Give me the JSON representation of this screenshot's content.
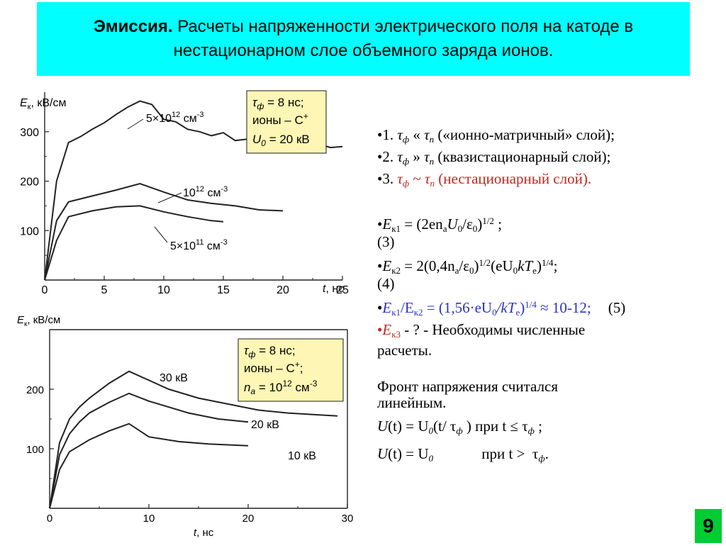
{
  "header": {
    "bold": "Эмиссия.",
    "rest": " Расчеты напряженности электрического поля на катоде в нестационарном слое объемного заряда ионов."
  },
  "chart_data": [
    {
      "type": "line",
      "ylabel_main": "E",
      "ylabel_sub": "к",
      "ylabel_unit": ", кВ/см",
      "xlabel": "t, нс",
      "xlim": [
        0,
        25
      ],
      "ylim": [
        0,
        380
      ],
      "xticks": [
        "0",
        "5",
        "10",
        "15",
        "20",
        "25"
      ],
      "yticks": [
        "100",
        "200",
        "300"
      ],
      "series": [
        {
          "name": "5×10¹² см⁻³",
          "x": [
            0,
            1,
            2,
            3,
            4,
            5,
            6,
            7,
            8,
            9,
            10,
            11,
            12,
            13,
            14,
            15,
            16,
            17,
            18,
            19,
            20,
            21,
            22,
            23,
            24,
            25
          ],
          "y": [
            0,
            200,
            278,
            290,
            305,
            318,
            335,
            350,
            362,
            355,
            325,
            320,
            305,
            300,
            292,
            298,
            282,
            285,
            278,
            280,
            275,
            278,
            272,
            275,
            268,
            270
          ]
        },
        {
          "name": "10¹² см⁻³",
          "x": [
            0,
            1,
            2,
            4,
            6,
            8,
            10,
            12,
            14,
            16,
            18,
            20
          ],
          "y": [
            0,
            120,
            158,
            170,
            182,
            195,
            178,
            162,
            155,
            150,
            142,
            140
          ]
        },
        {
          "name": "5×10¹¹ см⁻³",
          "x": [
            0,
            1,
            2,
            4,
            6,
            8,
            10,
            12,
            14,
            15
          ],
          "y": [
            0,
            80,
            128,
            140,
            148,
            150,
            138,
            128,
            120,
            118
          ]
        }
      ],
      "series_labels": [
        {
          "base": "5×10",
          "exp": "12",
          "unit": " см",
          "uexp": "-3"
        },
        {
          "base": "10",
          "exp": "12",
          "unit": " см",
          "uexp": "-3"
        },
        {
          "base": "5×10",
          "exp": "11",
          "unit": " см",
          "uexp": "-3"
        }
      ],
      "inset": {
        "line1": "τ",
        "line1b": "ф",
        "line1c": " = 8 нс;",
        "line2": "ионы – С",
        "line2sup": "+",
        "line3": "U",
        "line3b": "0",
        "line3c": " = 20 кВ"
      }
    },
    {
      "type": "line",
      "ylabel_main": "E",
      "ylabel_sub": "к",
      "ylabel_unit": ", кВ/см",
      "xlabel": "t, нс",
      "xlim": [
        0,
        30
      ],
      "ylim": [
        0,
        300
      ],
      "xticks": [
        "0",
        "10",
        "20",
        "30"
      ],
      "yticks": [
        "100",
        "200"
      ],
      "series": [
        {
          "name": "30 кВ",
          "x": [
            0,
            1,
            2,
            3,
            4,
            6,
            8,
            10,
            12,
            15,
            18,
            21,
            24,
            27,
            29
          ],
          "y": [
            0,
            110,
            150,
            170,
            185,
            210,
            230,
            215,
            200,
            185,
            175,
            165,
            160,
            157,
            155
          ]
        },
        {
          "name": "20 кВ",
          "x": [
            0,
            1,
            2,
            3,
            4,
            6,
            8,
            10,
            12,
            14,
            17,
            20
          ],
          "y": [
            0,
            90,
            125,
            145,
            160,
            178,
            193,
            180,
            170,
            160,
            150,
            145
          ]
        },
        {
          "name": "10 кВ",
          "x": [
            0,
            1,
            2,
            3,
            4,
            6,
            8,
            10,
            13,
            16,
            20
          ],
          "y": [
            0,
            65,
            95,
            105,
            115,
            130,
            142,
            120,
            112,
            108,
            105
          ]
        }
      ],
      "inset": {
        "line1": "τ",
        "line1b": "ф",
        "line1c": " = 8 нс;",
        "line2": "ионы – С",
        "line2sup": "+",
        "line2end": ";",
        "line3": "n",
        "line3b": "a",
        "line3c": " = 10",
        "line3sup": "12",
        "line3d": " см",
        "line3sup2": "-3"
      }
    }
  ],
  "right": {
    "i1": {
      "pre": "•1. ",
      "t": "τ",
      "f": "ф",
      "rel": " « ",
      "t2": "τ",
      "n": "п",
      "txt": " («ионно-матричный» слой);"
    },
    "i2": {
      "pre": "•2. ",
      "t": "τ",
      "f": "ф",
      "rel": " » ",
      "t2": "τ",
      "n": "п",
      "txt": "  (квазистационарный слой);"
    },
    "i3": {
      "pre": "•3. ",
      "t": "τ",
      "f": "ф",
      "rel": " ~ ",
      "t2": "τ",
      "n": "п",
      "txt": "  (нестационарный слой)."
    },
    "e1": {
      "pre": "•",
      "E": "E",
      "sub": "к1",
      "eq": " = (2en",
      "a": "a",
      "u": "U",
      "u0": "0",
      "sl": "/ε",
      "e0": "0",
      "cl": ")",
      "pw": "1/2",
      "end": " ;",
      "num": "(3)"
    },
    "e2": {
      "pre": "•",
      "E": "E",
      "sub": "к2",
      "eq": " = 2(0,4n",
      "a": "a",
      "sl": "/ε",
      "e0": "0",
      "cl": ")",
      "pw": "1/2",
      "mid": "(eU",
      "u0": "0",
      "kt": "kT",
      "e": "e",
      "cl2": ")",
      "pw2": "1/4",
      "end": ";",
      "num": "(4)"
    },
    "e3": {
      "pre": "•",
      "E": "E",
      "sub": "к1",
      "sl": "/E",
      "sub2": "к2",
      "eq": " = (1,56·eU",
      "u0": "0",
      "kt": "/kT",
      "e": "e",
      "cl": ")",
      "pw": "1/4",
      "approx": " ≈ 10-12;",
      "num": "(5)"
    },
    "e4": {
      "pre": "•",
      "E": "E",
      "sub": "к3",
      "txt": " - ? - Необходимы численные",
      "txt2": "расчеты."
    },
    "front1": "Фронт напряжения считался",
    "front2": "линейным.",
    "u1": {
      "u": "U",
      "t": "(t) = U",
      "z": "0",
      "p": "(t/ τ",
      "f": "ф",
      "c": " )  при t ≤  τ",
      "f2": "ф",
      "end": " ;"
    },
    "u2": {
      "u": "U",
      "t": "(t) = U",
      "z": "0",
      "p": "             при t >  τ",
      "f": "ф",
      "end": "."
    }
  },
  "slide_number": "9",
  "colors": {
    "header_bg": "#00ffff",
    "red": "#c0281e",
    "blue": "#2833c8",
    "slide_num_bg": "#00cc33"
  }
}
